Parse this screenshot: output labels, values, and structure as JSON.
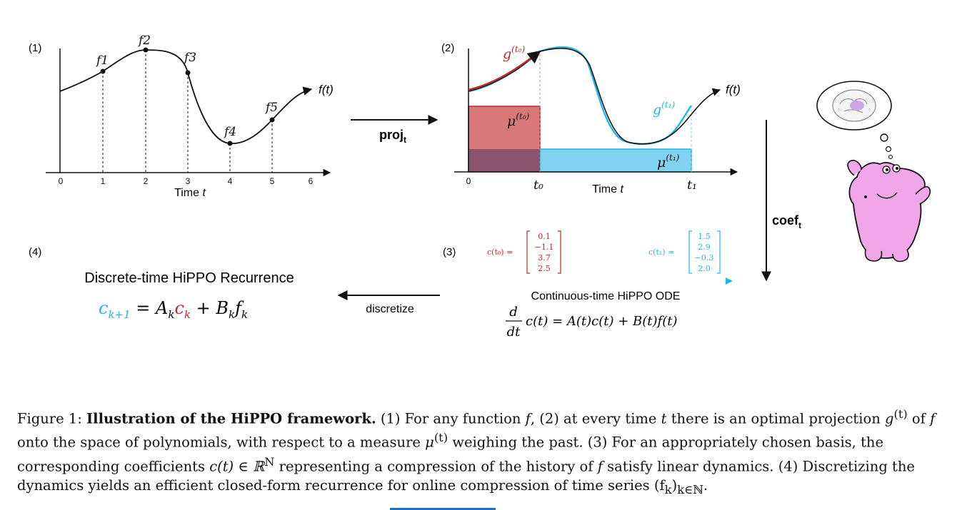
{
  "panel1": {
    "label": "(1)",
    "points": [
      "f1",
      "f2",
      "f3",
      "f4",
      "f5"
    ],
    "fn_label": "f(t)",
    "ticks": [
      "0",
      "1",
      "2",
      "3",
      "4",
      "5",
      "6"
    ],
    "xlabel_text": "Time ",
    "xlabel_var": "t"
  },
  "panel2": {
    "label": "(2)",
    "g0": "g",
    "g0_sup": "(t₀)",
    "g1": "g",
    "g1_sup": "(t₁)",
    "mu0": "μ",
    "mu0_sup": "(t₀)",
    "mu1": "μ",
    "mu1_sup": "(t₁)",
    "fn_label": "f(t)",
    "tick0": "0",
    "t0": "t₀",
    "t1": "t₁",
    "xlabel_text": "Time ",
    "xlabel_var": "t"
  },
  "arrows": {
    "proj": "proj",
    "proj_sub": "t",
    "coef": "coef",
    "coef_sub": "t",
    "discretize": "discretize"
  },
  "panel3": {
    "label": "(3)",
    "c_t0_label": "c(t₀) =",
    "c_t0_values": [
      "0.1",
      "−1.1",
      "3.7",
      "2.5"
    ],
    "c_t1_label": "c(t₁) =",
    "c_t1_values": [
      "1.5",
      "2.9",
      "−0.3",
      "2.0"
    ],
    "title": "Continuous-time HiPPO ODE",
    "ode_d": "d",
    "ode_dt": "dt",
    "ode_rhs": "c(t) = A(t)c(t) + B(t)f(t)"
  },
  "panel4": {
    "label": "(4)",
    "title": "Discrete-time HiPPO Recurrence",
    "lhs": "c",
    "lhs_sub": "k+1",
    "eq1": " = A",
    "eq1_sub": "k",
    "mid": "c",
    "mid_sub": "k",
    "eq2": " + B",
    "eq2_sub": "k",
    "eq3": "f",
    "eq3_sub": "k"
  },
  "colors": {
    "red": "#c0282d",
    "blue": "#1fb7e8",
    "red_fill": "#d9787a",
    "blue_fill": "#7fd3f0",
    "purple_fill": "#7a4d6a",
    "hippo": "#f2a6ea"
  },
  "caption": {
    "prefix": "Figure 1: ",
    "bold": "Illustration of the HiPPO framework.",
    "s1": " (1) For any function ",
    "f1": "f",
    "s2": ", (2) at every time ",
    "t1": "t",
    "s3": " there is an optimal projection ",
    "g": "g",
    "g_sup": "(t)",
    "s4": " of ",
    "f2": "f",
    "s5": " onto the space of polynomials, with respect to a measure ",
    "mu": "μ",
    "mu_sup": "(t)",
    "s6": " weighing the past. (3) For an appropriately chosen basis, the corresponding coefficients ",
    "ct": "c(t) ∈ ℝ",
    "ct_sup": "N",
    "s7": " representing a compression of the history of ",
    "f3": "f",
    "s8": " satisfy linear dynamics. (4) Discretizing the dynamics yields an efficient closed-form recurrence for online compression of time series ",
    "fk": "(f",
    "fk_sub": "k",
    "fk_end": ")",
    "fk_sub2": "k∈ℕ",
    "end": "."
  }
}
